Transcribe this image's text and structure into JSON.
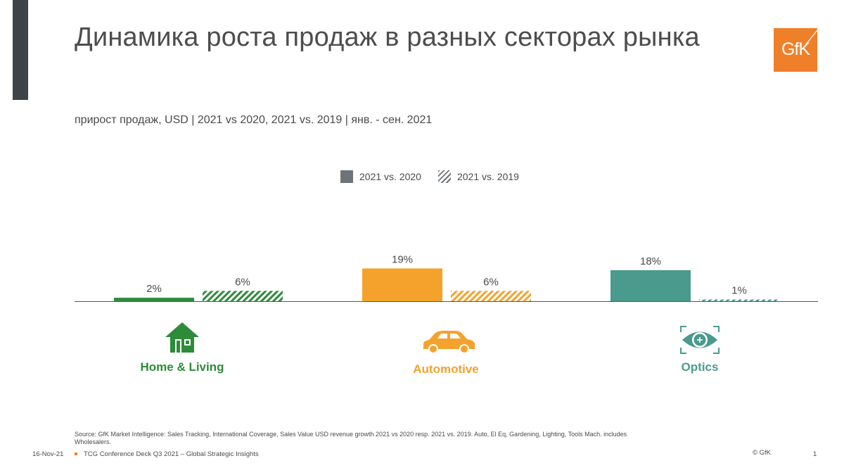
{
  "title": "Динамика роста продаж в разных секторах рынка",
  "subtitle": "прирост продаж, USD | 2021 vs 2020,  2021 vs. 2019 | янв. - сен. 2021",
  "logo": {
    "text": "GfK",
    "color": "#f07f2a"
  },
  "colors": {
    "accent_bar": "#3d4348",
    "legend_swatch": "#6d7479",
    "axis": "#555555"
  },
  "chart_data": {
    "type": "bar",
    "title": "Динамика роста продаж в разных секторах рынка",
    "subtitle": "прирост продаж, USD | 2021 vs 2020,  2021 vs. 2019 | янв. - сен. 2021",
    "xlabel": "",
    "ylabel": "",
    "ylim": [
      0,
      19
    ],
    "grid": false,
    "legend_position": "top-center",
    "categories": [
      "Home & Living",
      "Automotive",
      "Optics"
    ],
    "category_colors": [
      "#2e8b3a",
      "#f5a22c",
      "#4a9a8e"
    ],
    "category_icons": [
      "house-icon",
      "car-icon",
      "eye-icon"
    ],
    "series": [
      {
        "name": "2021 vs. 2020",
        "style": "solid",
        "values": [
          2,
          19,
          18
        ],
        "labels": [
          "2%",
          "19%",
          "18%"
        ]
      },
      {
        "name": "2021 vs. 2019",
        "style": "hatched",
        "values": [
          6,
          6,
          1
        ],
        "labels": [
          "6%",
          "6%",
          "1%"
        ]
      }
    ]
  },
  "footer": {
    "source": "Source: GfK Market Intelligence: Sales Tracking, International Coverage, Sales Value USD revenue growth 2021 vs 2020 resp. 2021 vs. 2019. Auto, El Eq, Gardening, Lighting, Tools Mach. includes Wholesalers.",
    "date": "16-Nov-21",
    "deck": "TCG Conference Deck Q3 2021 – Global Strategic Insights",
    "copyright": "© GfK",
    "page": "1"
  }
}
